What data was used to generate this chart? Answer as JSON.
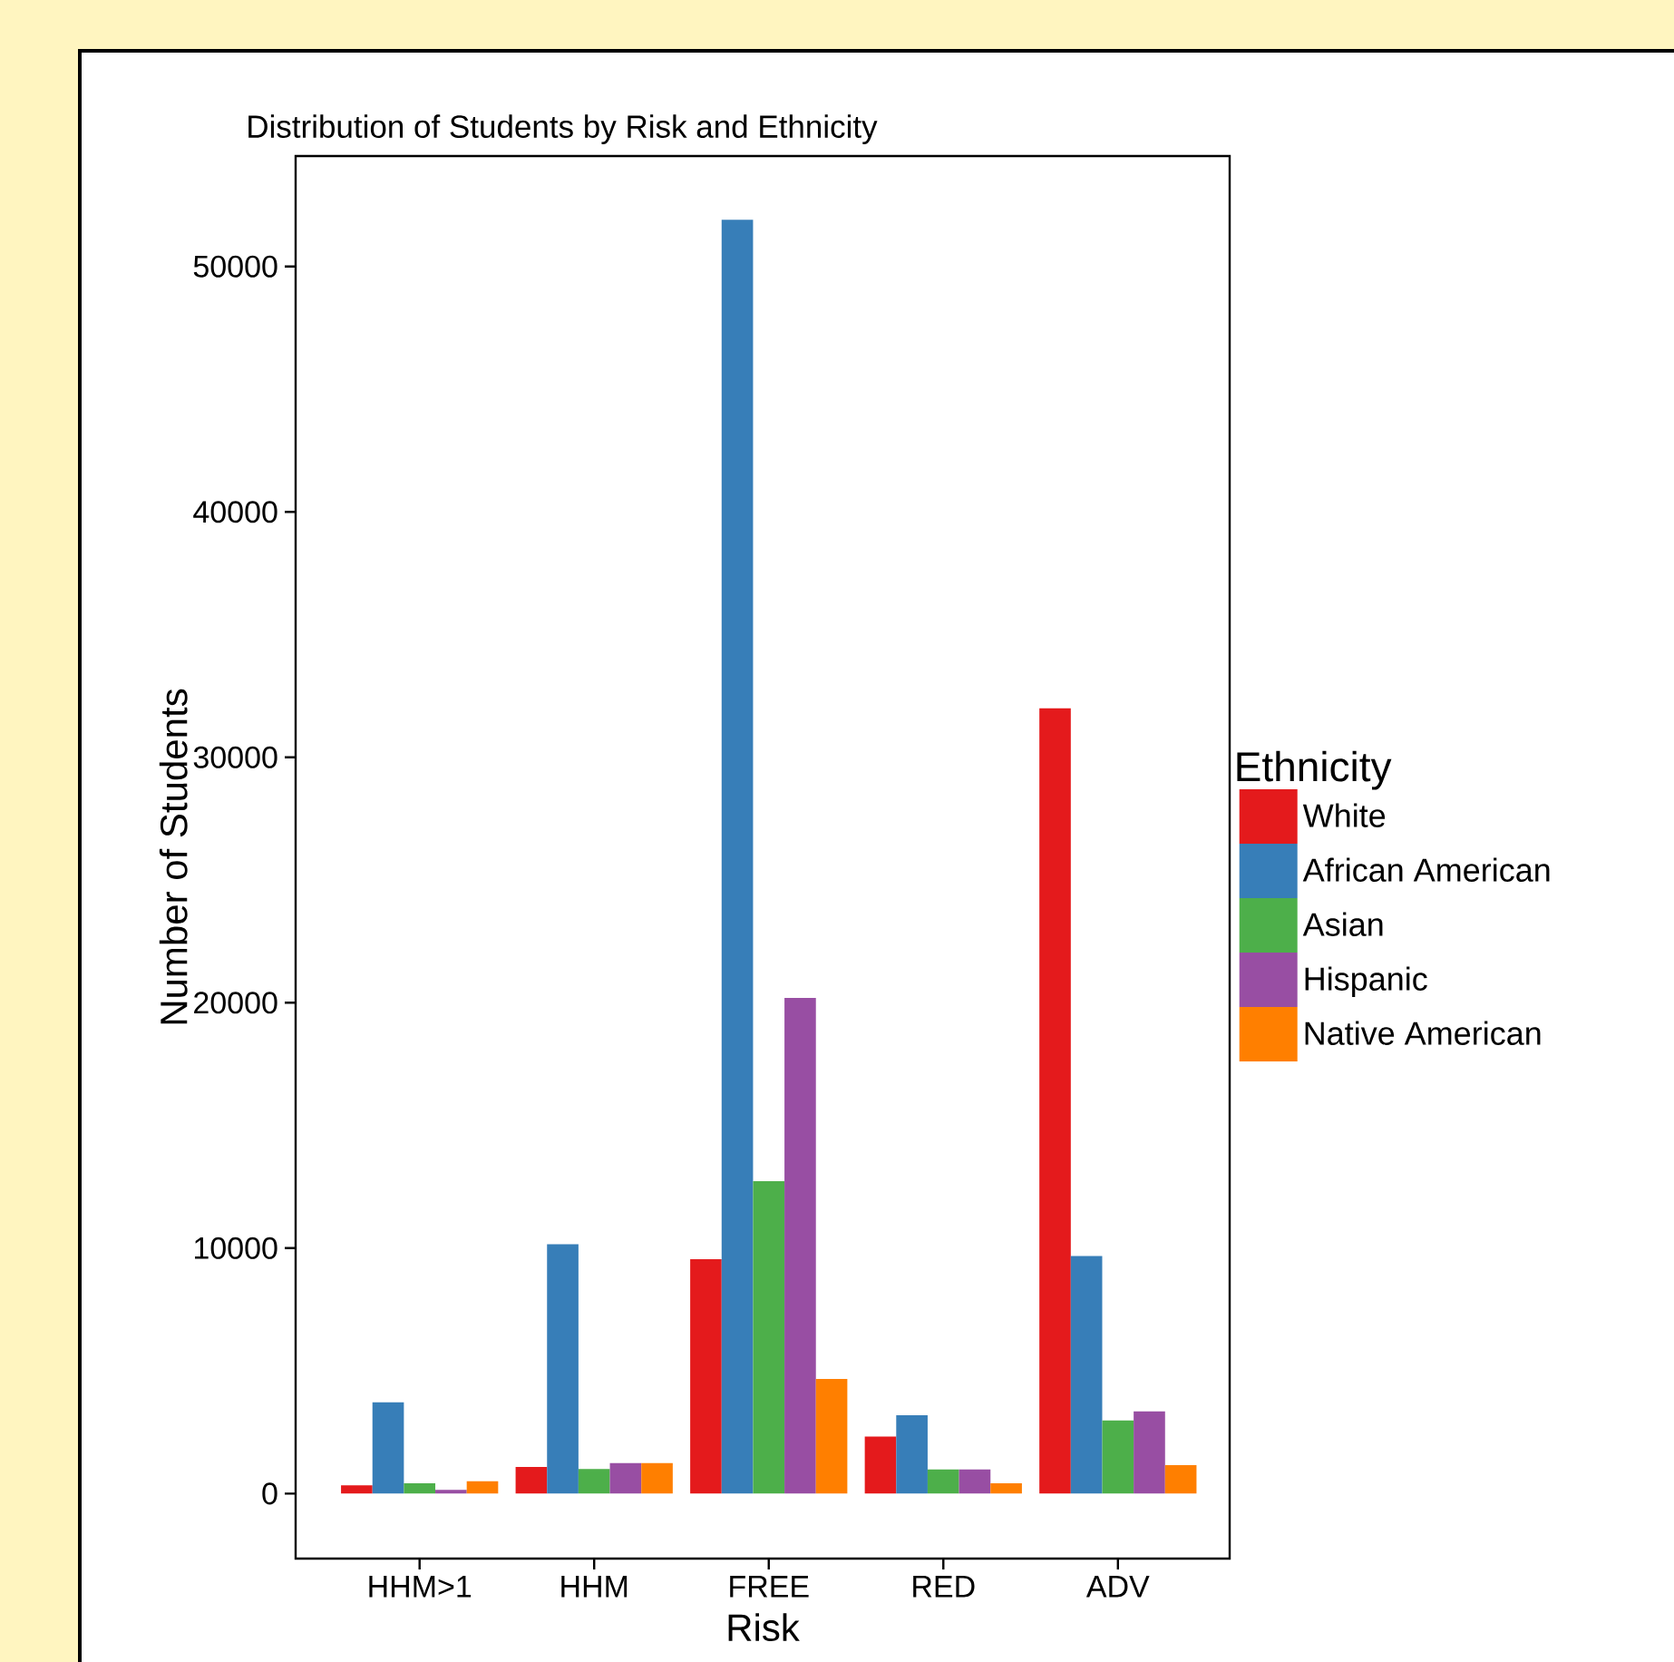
{
  "chart_data": {
    "type": "bar",
    "title": "Distribution of Students by Risk and Ethnicity",
    "xlabel": "Risk",
    "ylabel": "Number of Students",
    "legend_title": "Ethnicity",
    "categories": [
      "HHM>1",
      "HHM",
      "FREE",
      "RED",
      "ADV"
    ],
    "series": [
      {
        "name": "White",
        "color": "#e41a1c",
        "values": [
          340,
          1080,
          9550,
          2320,
          32000
        ]
      },
      {
        "name": "African American",
        "color": "#377eb8",
        "values": [
          3720,
          10160,
          51900,
          3190,
          9680
        ]
      },
      {
        "name": "Asian",
        "color": "#4daf4a",
        "values": [
          420,
          1000,
          12730,
          980,
          2980
        ]
      },
      {
        "name": "Hispanic",
        "color": "#984ea3",
        "values": [
          150,
          1240,
          20200,
          980,
          3350
        ]
      },
      {
        "name": "Native American",
        "color": "#ff7f00",
        "values": [
          500,
          1240,
          4670,
          420,
          1160
        ]
      }
    ],
    "ylim": [
      -2650,
      54500
    ],
    "yticks": [
      0,
      10000,
      20000,
      30000,
      40000,
      50000
    ],
    "grid": false,
    "legend": "right"
  }
}
